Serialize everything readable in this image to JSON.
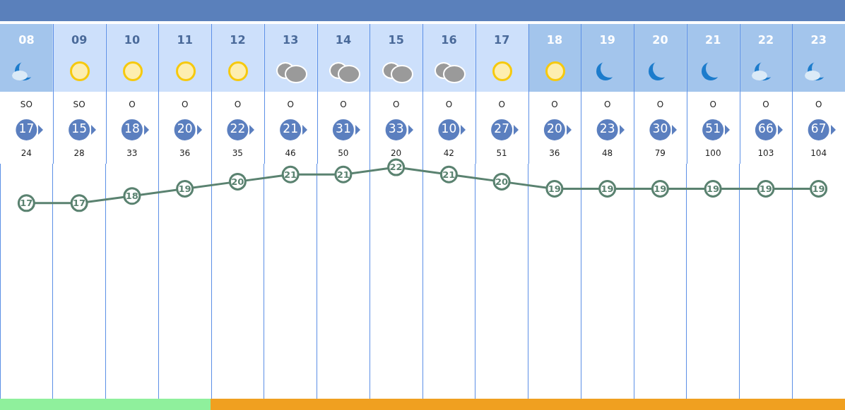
{
  "chart_data": {
    "type": "line",
    "categories": [
      "08",
      "09",
      "10",
      "11",
      "12",
      "13",
      "14",
      "15",
      "16",
      "17",
      "18",
      "19",
      "20",
      "21",
      "22",
      "23"
    ],
    "series": [
      {
        "color": "#5a8270",
        "values": [
          17,
          17,
          18,
          19,
          20,
          21,
          21,
          22,
          21,
          20,
          19,
          19,
          19,
          19,
          19,
          19
        ]
      }
    ],
    "ylim": [
      -10.5,
      22.5
    ],
    "data_labels": true,
    "marker": "circle",
    "line_style": "solid",
    "grid": "x",
    "legend": false,
    "tick_labels": "x",
    "annotations": [
      "SO",
      "SO",
      "O",
      "O",
      "O",
      "O",
      "O",
      "O",
      "O",
      "O",
      "O",
      "O",
      "O",
      "O",
      "O",
      "O",
      "17",
      "15",
      "18",
      "20",
      "22",
      "21",
      "31",
      "33",
      "10",
      "27",
      "20",
      "23",
      "30",
      "51",
      "66",
      "67",
      "24",
      "28",
      "33",
      "36",
      "35",
      "46",
      "50",
      "20",
      "42",
      "51",
      "36",
      "48",
      "79",
      "100",
      "103",
      "104"
    ]
  }
}
